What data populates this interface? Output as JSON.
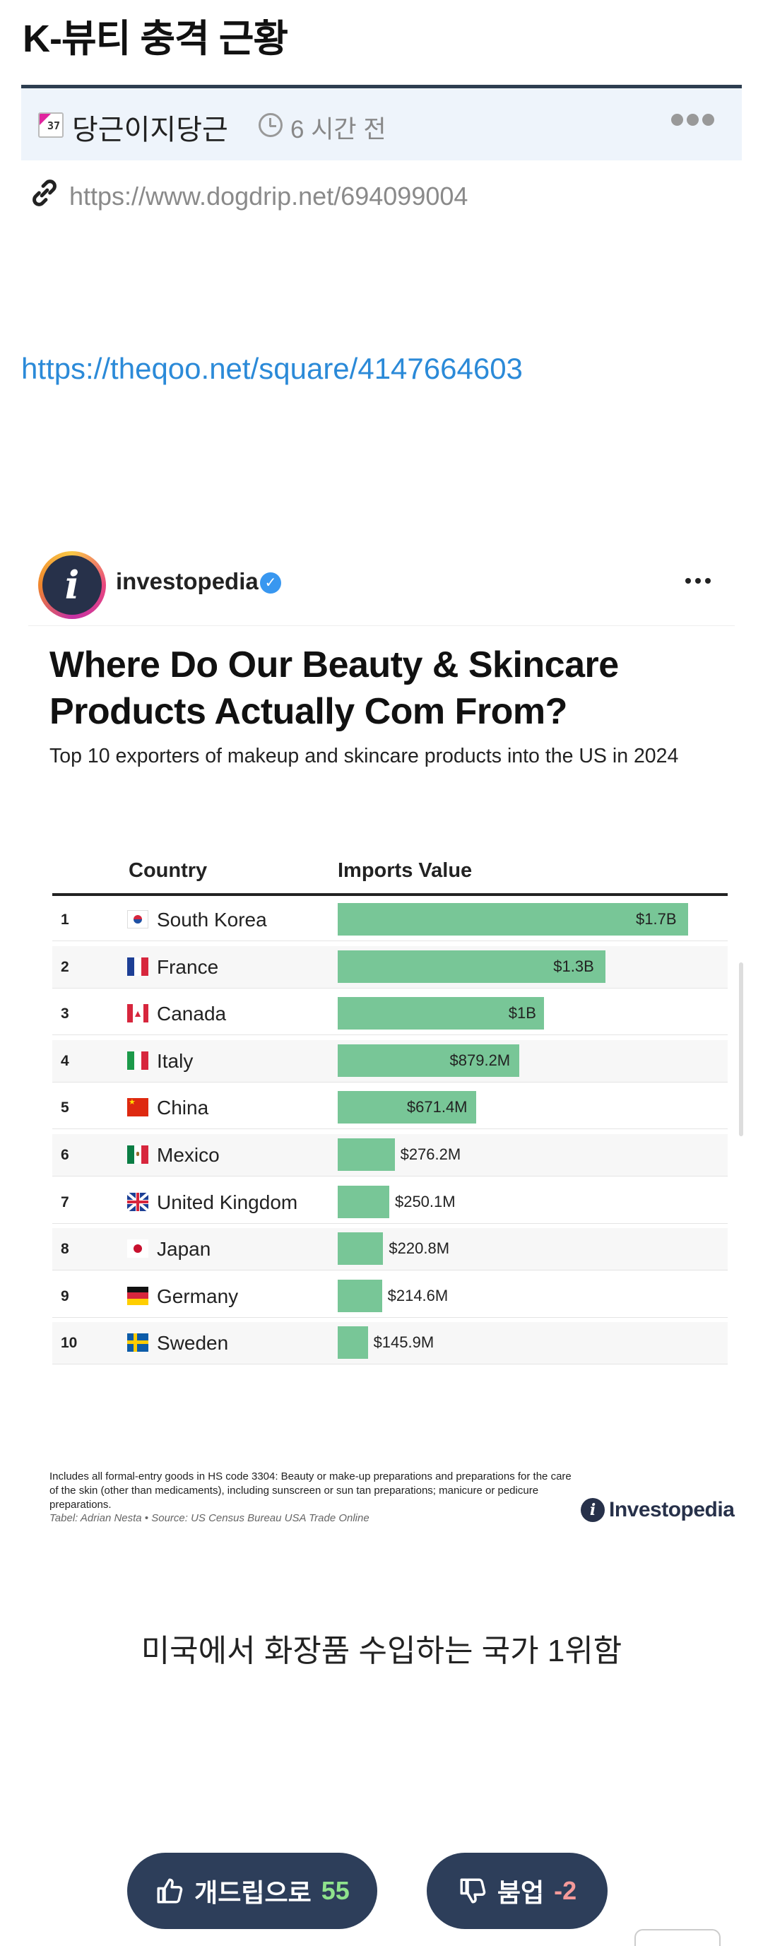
{
  "post": {
    "title": "K-뷰티 충격 근황",
    "author": "당근이지당근",
    "author_icon_text": "37",
    "time": "6 시간 전",
    "source_link": "https://www.dogdrip.net/694099004",
    "body_link": "https://theqoo.net/square/4147664603",
    "caption": "미국에서 화장품 수입하는 국가 1위함"
  },
  "embed": {
    "account": "investopedia",
    "avatar_glyph": "i",
    "verified_glyph": "✓",
    "footnote": "Includes all formal-entry goods in HS code 3304: Beauty or make-up preparations and preparations for the care of the skin (other than medicaments), including sunscreen or sun tan preparations; manicure or pedicure preparations.",
    "source": "Tabel: Adrian Nesta • Source: US Census Bureau USA Trade Online",
    "brand": "Investopedia",
    "brand_glyph": "i"
  },
  "chart_data": {
    "type": "bar",
    "title": "Where Do Our Beauty & Skincare Products Actually Com From?",
    "subtitle": "Top 10 exporters of makeup and skincare products into the US in 2024",
    "columns": [
      "Country",
      "Imports Value"
    ],
    "ranks": [
      "1",
      "2",
      "3",
      "4",
      "5",
      "6",
      "7",
      "8",
      "9",
      "10"
    ],
    "categories": [
      "South Korea",
      "France",
      "Canada",
      "Italy",
      "China",
      "Mexico",
      "United Kingdom",
      "Japan",
      "Germany",
      "Sweden"
    ],
    "values": [
      1700,
      1300,
      1000,
      879.2,
      671.4,
      276.2,
      250.1,
      220.8,
      214.6,
      145.9
    ],
    "value_unit": "million USD",
    "value_labels": [
      "$1.7B",
      "$1.3B",
      "$1B",
      "$879.2M",
      "$671.4M",
      "$276.2M",
      "$250.1M",
      "$220.8M",
      "$214.6M",
      "$145.9M"
    ],
    "bar_color": "#78c697"
  },
  "votes": {
    "up_label": "개드립으로",
    "up_count": "55",
    "down_label": "붐업",
    "down_count": "-2"
  },
  "colors": {
    "title_rule": "#2d3e50",
    "meta_bg": "#eef4fb",
    "link": "#2b8ad8",
    "vote_bg": "#2d3e5a"
  }
}
